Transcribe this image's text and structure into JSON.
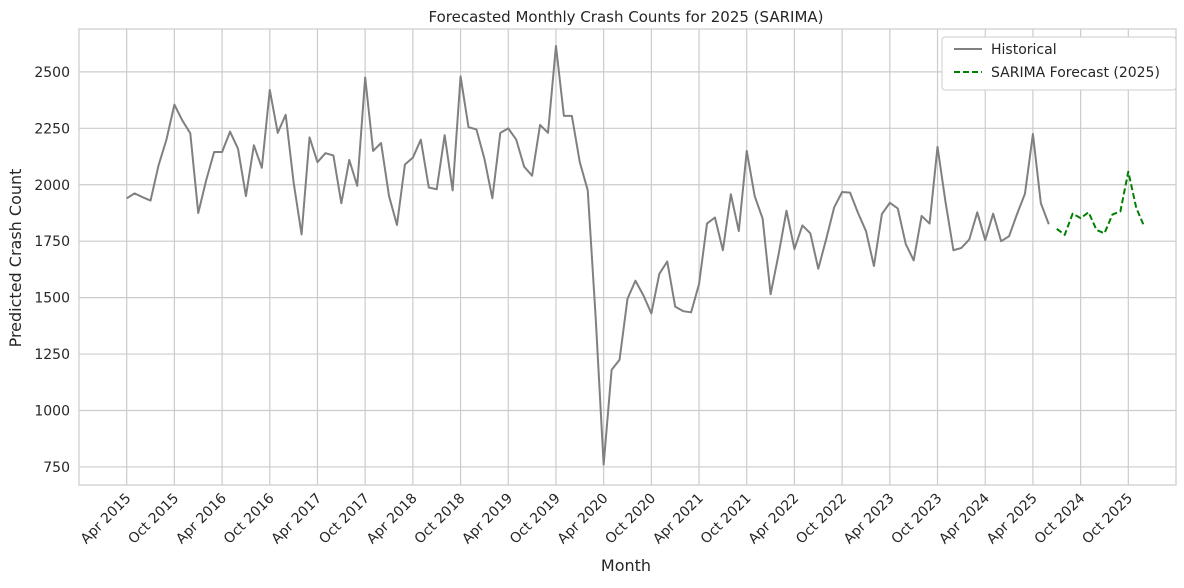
{
  "chart_data": {
    "type": "line",
    "title": "Forecasted Monthly Crash Counts for 2025 (SARIMA)",
    "xlabel": "Month",
    "ylabel": "Predicted Crash Count",
    "ylim": [
      670,
      2690
    ],
    "yticks": [
      750,
      1000,
      1250,
      1500,
      1750,
      2000,
      2250,
      2500
    ],
    "ytick_labels": [
      "750",
      "1000",
      "1250",
      "1500",
      "1750",
      "2000",
      "2250",
      "2500"
    ],
    "xlim": [
      "2014-10",
      "2026-04"
    ],
    "xticks": [
      "2015-04",
      "2015-10",
      "2016-04",
      "2016-10",
      "2017-04",
      "2017-10",
      "2018-04",
      "2018-10",
      "2019-04",
      "2019-10",
      "2020-04",
      "2020-10",
      "2021-04",
      "2021-10",
      "2022-04",
      "2022-10",
      "2023-04",
      "2023-10",
      "2024-04",
      "2024-10",
      "2025-04",
      "2025-10"
    ],
    "xtick_labels": [
      "Apr 2015",
      "Oct 2015",
      "Apr 2016",
      "Oct 2016",
      "Apr 2017",
      "Oct 2017",
      "Apr 2018",
      "Oct 2018",
      "Apr 2019",
      "Oct 2019",
      "Apr 2020",
      "Oct 2020",
      "Apr 2021",
      "Oct 2021",
      "Apr 2022",
      "Oct 2022",
      "Apr 2023",
      "Oct 2023",
      "Apr 2024",
      "Apr 2025",
      "Oct 2024",
      "Oct 2025"
    ],
    "grid": true,
    "legend_position": "top-right",
    "series": [
      {
        "name": "Historical",
        "color": "#808080",
        "style": "solid",
        "start": "2015-04",
        "values": [
          1940,
          1962,
          1945,
          1930,
          2085,
          2200,
          2355,
          2285,
          2228,
          1875,
          2020,
          2145,
          2145,
          2235,
          2160,
          1950,
          2175,
          2075,
          2420,
          2230,
          2310,
          2010,
          1780,
          2210,
          2100,
          2140,
          2130,
          1918,
          2110,
          1995,
          2475,
          2150,
          2185,
          1950,
          1822,
          2090,
          2120,
          2200,
          1988,
          1980,
          2220,
          1975,
          2480,
          2255,
          2245,
          2115,
          1940,
          2230,
          2250,
          2200,
          2080,
          2040,
          2265,
          2230,
          2615,
          2305,
          2305,
          2100,
          1975,
          1410,
          760,
          1180,
          1225,
          1495,
          1575,
          1510,
          1430,
          1605,
          1660,
          1460,
          1440,
          1435,
          1560,
          1828,
          1855,
          1710,
          1958,
          1795,
          2150,
          1950,
          1850,
          1515,
          1690,
          1885,
          1715,
          1820,
          1785,
          1628,
          1760,
          1900,
          1968,
          1965,
          1875,
          1795,
          1640,
          1870,
          1920,
          1895,
          1738,
          1665,
          1862,
          1828,
          2168,
          1925,
          1710,
          1720,
          1758,
          1878,
          1755,
          1872,
          1750,
          1772,
          1870,
          1960,
          2225,
          1918,
          1825
        ]
      },
      {
        "name": "SARIMA Forecast (2025)",
        "color": "#008000",
        "style": "dashed",
        "start": "2025-01",
        "values": [
          1805,
          1778,
          1872,
          1852,
          1878,
          1800,
          1785,
          1868,
          1882,
          2058,
          1898,
          1815
        ]
      }
    ]
  }
}
